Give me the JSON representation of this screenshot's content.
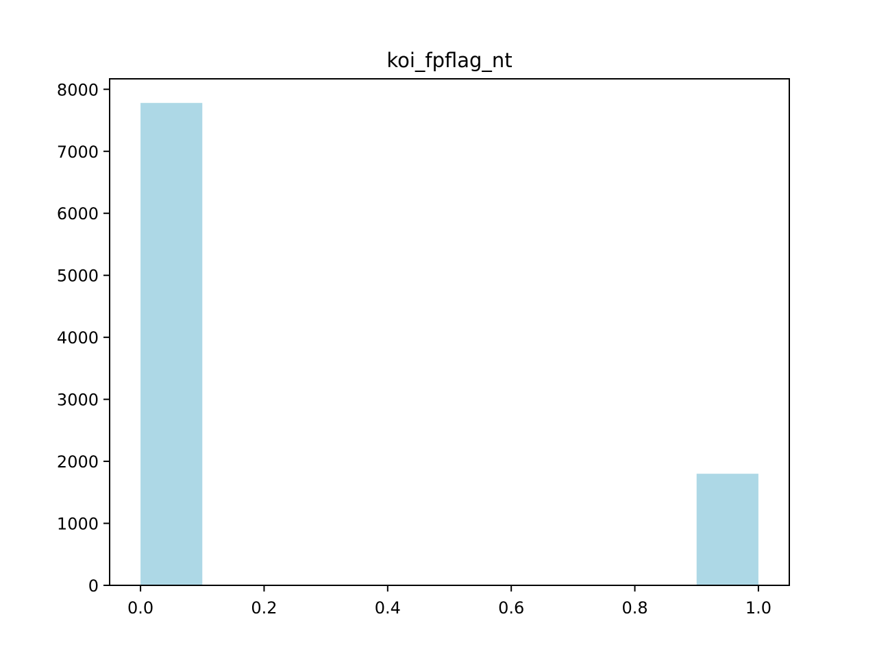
{
  "chart_data": {
    "type": "bar",
    "title": "koi_fpflag_nt",
    "xlabel": "",
    "ylabel": "",
    "bins": [
      {
        "x0": 0.0,
        "x1": 0.1,
        "value": 7780
      },
      {
        "x0": 0.1,
        "x1": 0.2,
        "value": 0
      },
      {
        "x0": 0.2,
        "x1": 0.3,
        "value": 0
      },
      {
        "x0": 0.3,
        "x1": 0.4,
        "value": 0
      },
      {
        "x0": 0.4,
        "x1": 0.5,
        "value": 0
      },
      {
        "x0": 0.5,
        "x1": 0.6,
        "value": 0
      },
      {
        "x0": 0.6,
        "x1": 0.7,
        "value": 0
      },
      {
        "x0": 0.7,
        "x1": 0.8,
        "value": 0
      },
      {
        "x0": 0.8,
        "x1": 0.9,
        "value": 0
      },
      {
        "x0": 0.9,
        "x1": 1.0,
        "value": 1800
      }
    ],
    "xlim": [
      -0.05,
      1.05
    ],
    "ylim": [
      0,
      8169
    ],
    "xticks": [
      {
        "value": 0.0,
        "label": "0.0"
      },
      {
        "value": 0.2,
        "label": "0.2"
      },
      {
        "value": 0.4,
        "label": "0.4"
      },
      {
        "value": 0.6,
        "label": "0.6"
      },
      {
        "value": 0.8,
        "label": "0.8"
      },
      {
        "value": 1.0,
        "label": "1.0"
      }
    ],
    "yticks": [
      {
        "value": 0,
        "label": "0"
      },
      {
        "value": 1000,
        "label": "1000"
      },
      {
        "value": 2000,
        "label": "2000"
      },
      {
        "value": 3000,
        "label": "3000"
      },
      {
        "value": 4000,
        "label": "4000"
      },
      {
        "value": 5000,
        "label": "5000"
      },
      {
        "value": 6000,
        "label": "6000"
      },
      {
        "value": 7000,
        "label": "7000"
      },
      {
        "value": 8000,
        "label": "8000"
      }
    ],
    "grid": false,
    "colors": {
      "bar": "#add8e6",
      "axis": "#000000",
      "background": "#ffffff"
    }
  }
}
